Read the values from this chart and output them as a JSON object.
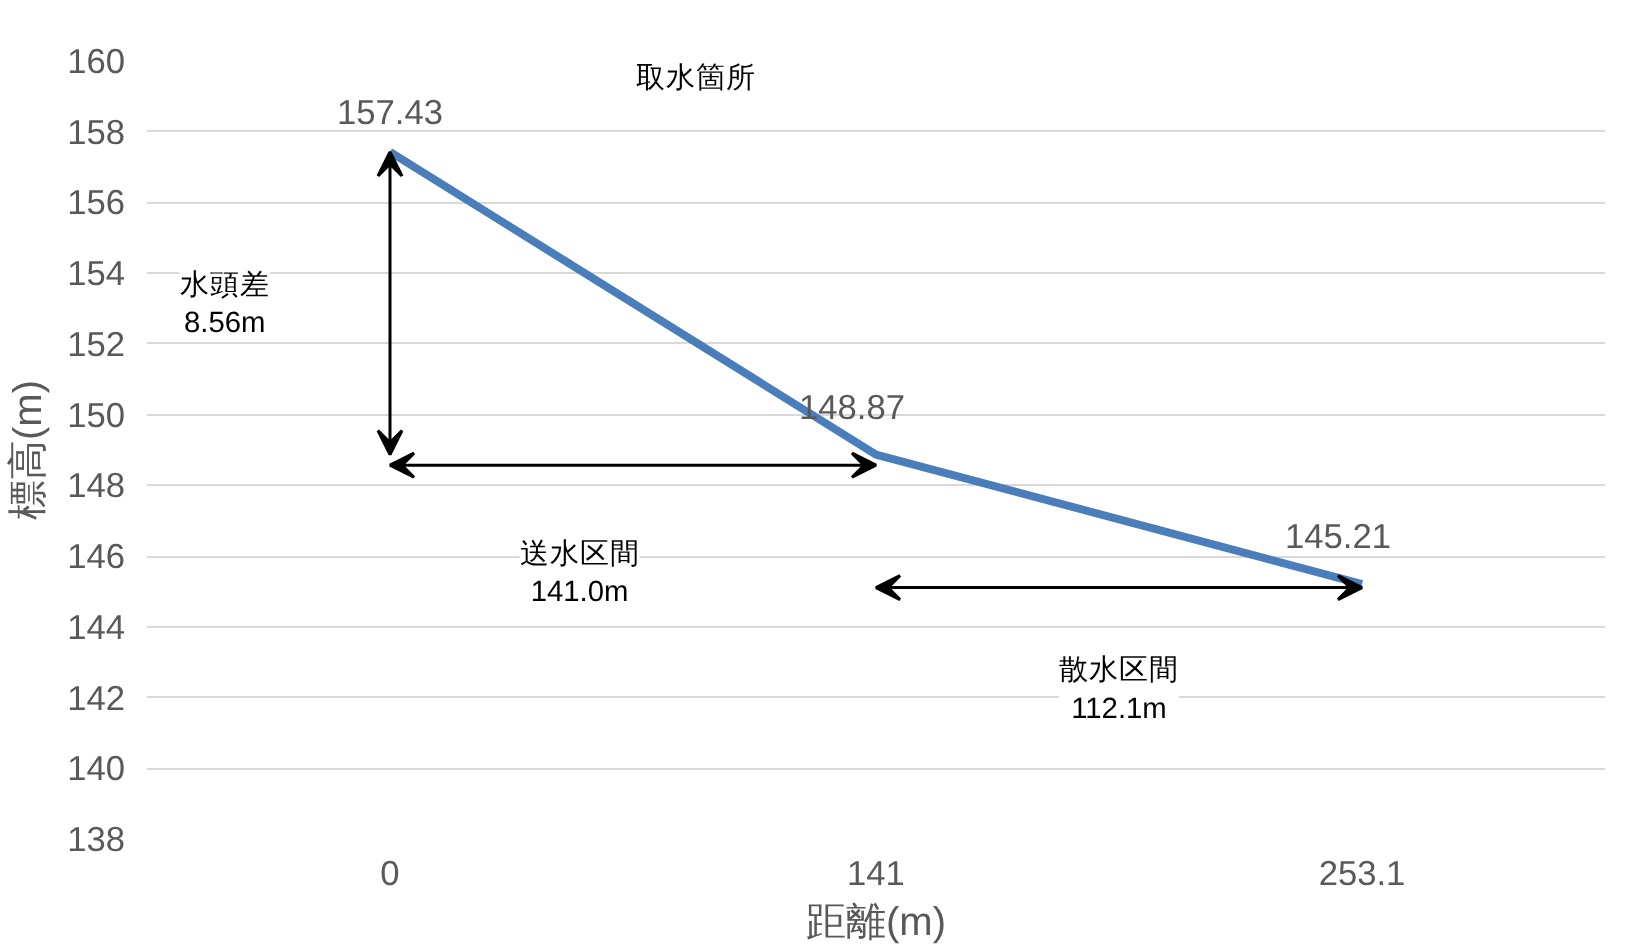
{
  "chart_data": {
    "type": "line",
    "xlabel": "距離(m)",
    "ylabel": "標高(m)",
    "categories": [
      "0",
      "141",
      "253.1"
    ],
    "series": [
      {
        "color": "#4a7ebb",
        "values": [
          157.43,
          148.87,
          145.21
        ]
      }
    ],
    "data_labels": true,
    "ylim": [
      138,
      160
    ],
    "yticks": [
      138,
      140,
      142,
      144,
      146,
      148,
      150,
      152,
      154,
      156,
      158,
      160
    ],
    "grid": "y",
    "marker": "none",
    "line_style": "solid",
    "annotations": [
      "取水箇所",
      "水頭差\n8.56m",
      "送水区間\n141.0m",
      "散水区間\n112.1m"
    ]
  }
}
